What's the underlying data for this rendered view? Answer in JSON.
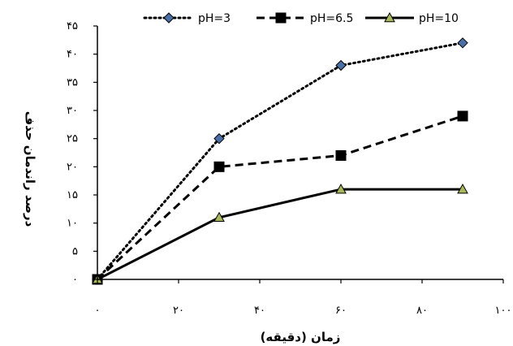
{
  "chart_data": {
    "type": "line",
    "xlabel": "زمان (دقیقه)",
    "ylabel": "درصد راندمان حذف",
    "xlim": [
      0,
      100
    ],
    "ylim": [
      0,
      45
    ],
    "x_ticks": [
      {
        "value": 0,
        "label": "۰"
      },
      {
        "value": 20,
        "label": "۲۰"
      },
      {
        "value": 40,
        "label": "۴۰"
      },
      {
        "value": 60,
        "label": "۶۰"
      },
      {
        "value": 80,
        "label": "۸۰"
      },
      {
        "value": 100,
        "label": "۱۰۰"
      }
    ],
    "y_ticks": [
      {
        "value": 0,
        "label": "۰"
      },
      {
        "value": 5,
        "label": "۵"
      },
      {
        "value": 10,
        "label": "۱۰"
      },
      {
        "value": 15,
        "label": "۱۵"
      },
      {
        "value": 20,
        "label": "۲۰"
      },
      {
        "value": 25,
        "label": "۲۵"
      },
      {
        "value": 30,
        "label": "۳۰"
      },
      {
        "value": 35,
        "label": "۳۵"
      },
      {
        "value": 40,
        "label": "۴۰"
      },
      {
        "value": 45,
        "label": "۴۵"
      }
    ],
    "grid": false,
    "legend_position": "top",
    "series": [
      {
        "name": "pH=3",
        "line_style": "dotted",
        "marker": "diamond",
        "marker_color": "#4a6fa5",
        "x": [
          0,
          30,
          60,
          90
        ],
        "y": [
          0,
          25,
          38,
          42
        ]
      },
      {
        "name": "pH=6.5",
        "line_style": "dashed",
        "marker": "square",
        "marker_color": "#000000",
        "x": [
          0,
          30,
          60,
          90
        ],
        "y": [
          0,
          20,
          22,
          29
        ]
      },
      {
        "name": "pH=10",
        "line_style": "solid",
        "marker": "triangle",
        "marker_color": "#a8b85a",
        "x": [
          0,
          30,
          60,
          90
        ],
        "y": [
          0,
          11,
          16,
          16
        ]
      }
    ]
  }
}
